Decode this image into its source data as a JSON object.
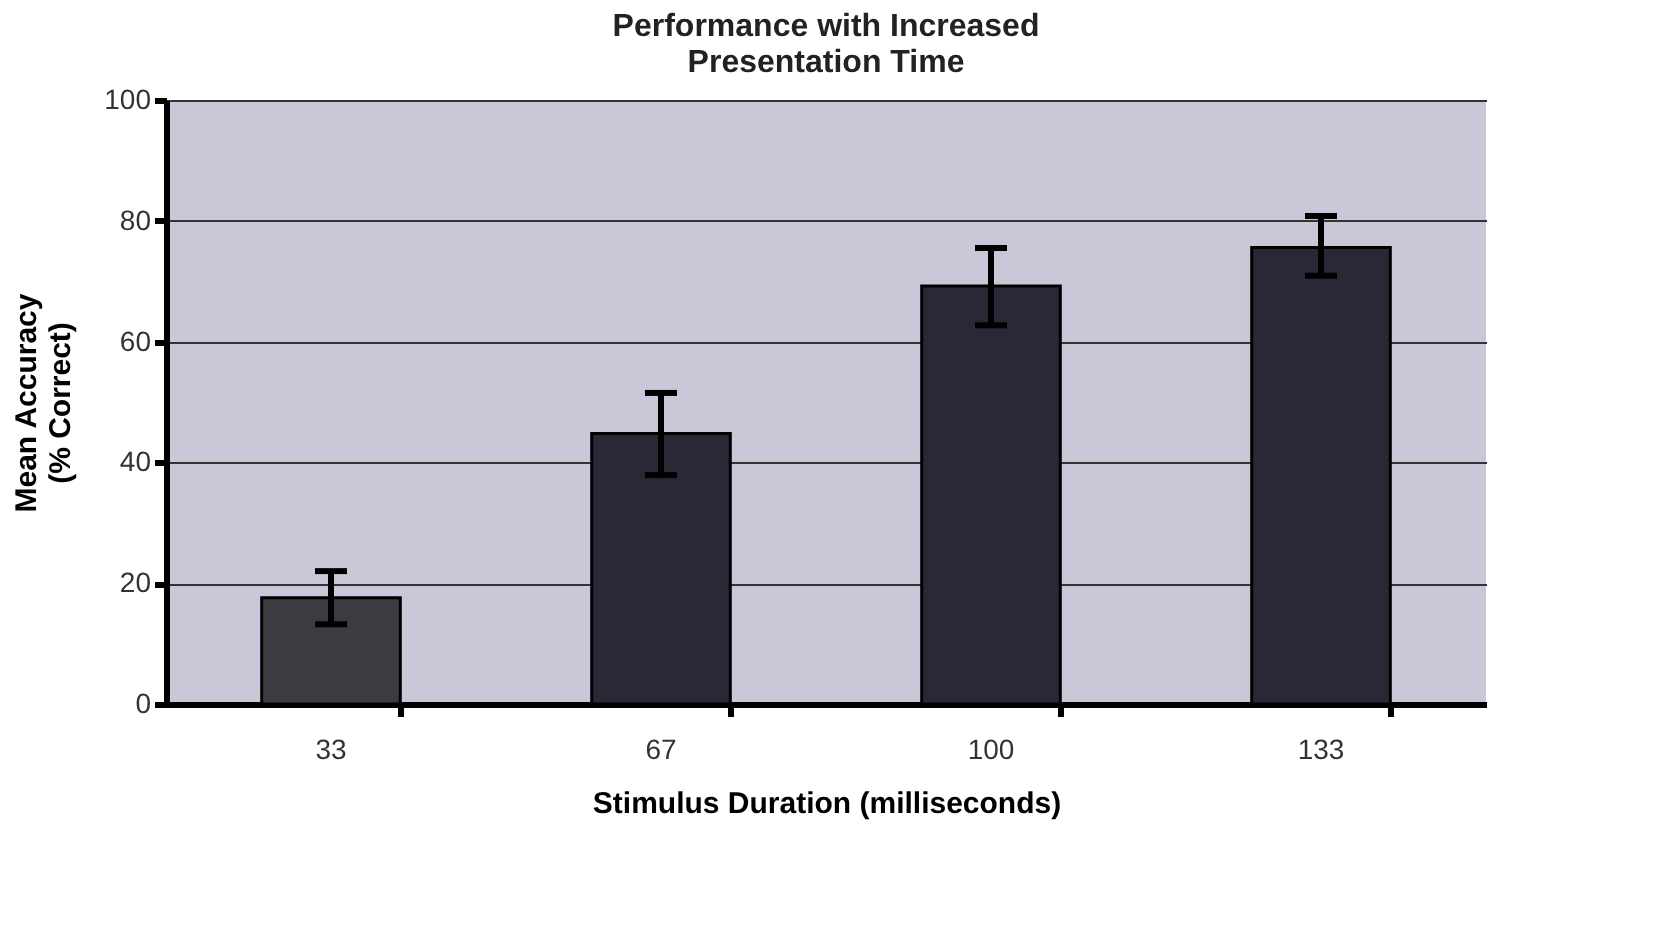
{
  "chart_data": {
    "type": "bar",
    "title": [
      "Performance with Increased",
      "Presentation Time"
    ],
    "xlabel": "Stimulus Duration (milliseconds)",
    "ylabel": [
      "Mean Accuracy",
      "(% Correct)"
    ],
    "categories": [
      "33",
      "67",
      "100",
      "133"
    ],
    "values": [
      17.6,
      44.8,
      69.2,
      75.6
    ],
    "errors": [
      [
        13.2,
        22.0
      ],
      [
        37.9,
        51.5
      ],
      [
        62.7,
        75.5
      ],
      [
        70.9,
        80.8
      ]
    ],
    "colors": [
      "#3c3b42",
      "#2b2736",
      "#2b2736",
      "#2b2736"
    ],
    "ylim": [
      0,
      100
    ],
    "yticks": [
      0,
      20,
      40,
      60,
      80,
      100
    ],
    "grid": "y"
  }
}
